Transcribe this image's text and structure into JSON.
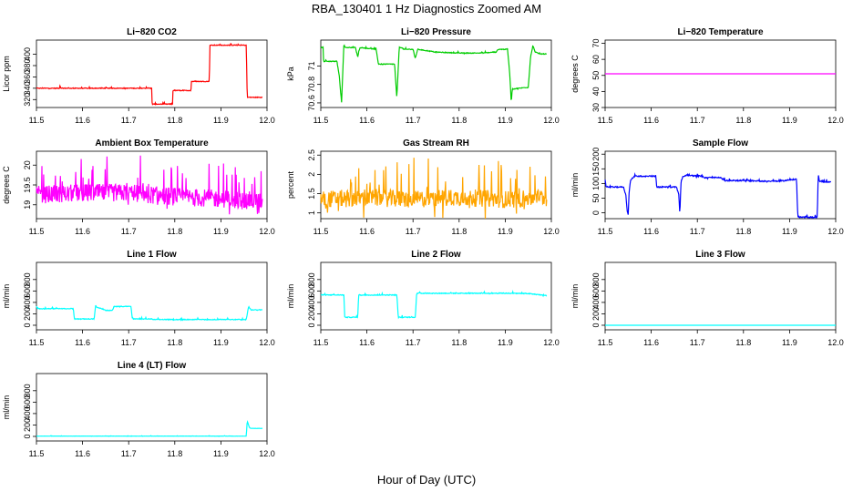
{
  "figure": {
    "title": "RBA_130401  1 Hz Diagnostics Zoomed AM",
    "xlabel": "Hour of Day (UTC)"
  },
  "chart_data": [
    {
      "type": "line",
      "title": "Li−820 CO2",
      "ylabel": "Licor ppm",
      "color": "#ff0000",
      "noise": 1.5,
      "xlim": [
        11.5,
        12.0
      ],
      "ylim": [
        306,
        425
      ],
      "yticks": [
        320,
        340,
        360,
        380,
        400
      ],
      "x": [
        11.5,
        11.55,
        11.55,
        11.553,
        11.553,
        11.75,
        11.75,
        11.752,
        11.752,
        11.8,
        11.8,
        11.8,
        11.8,
        11.8,
        11.8,
        11.8,
        11.8,
        11.8,
        11.8,
        11.8,
        11.8,
        11.8,
        11.8,
        11.8,
        11.8,
        11.8,
        11.8
      ],
      "y": [
        340,
        340,
        345,
        345,
        340,
        340,
        340,
        340,
        340,
        340,
        340,
        340,
        340,
        340,
        340,
        340,
        340,
        340,
        340,
        340,
        340,
        340,
        340,
        340,
        340,
        340,
        340
      ]
    }
  ]
}
